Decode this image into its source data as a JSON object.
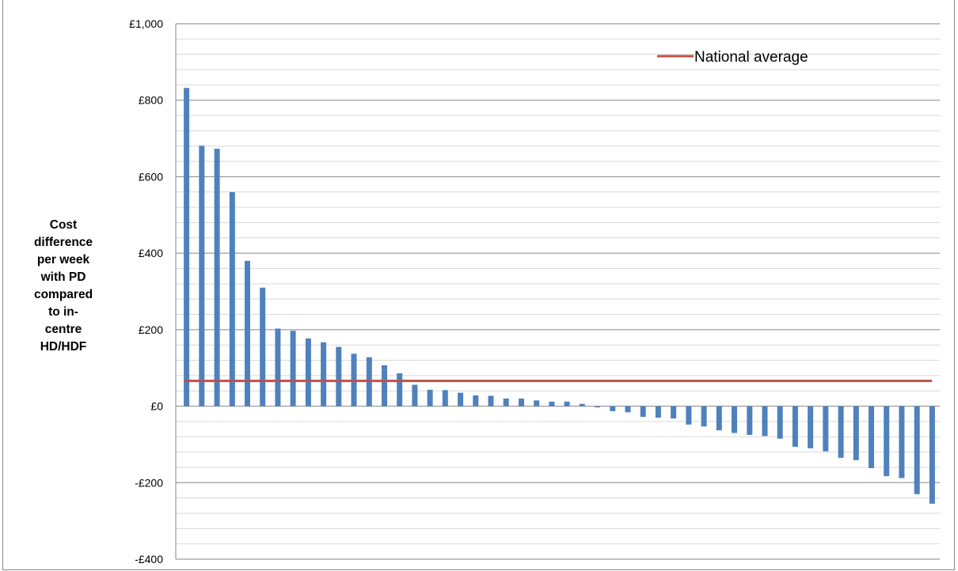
{
  "chart_data": {
    "type": "bar",
    "title": "",
    "xlabel": "",
    "ylabel_lines": [
      "Cost",
      "difference",
      "per week",
      "with PD",
      "compared",
      "to in-centre",
      "HD/HDF"
    ],
    "ylim": [
      -400,
      1000
    ],
    "yticks": [
      -400,
      -200,
      0,
      200,
      400,
      600,
      800,
      1000
    ],
    "ytick_labels": [
      "-£400",
      "-£200",
      "£0",
      "£200",
      "£400",
      "£600",
      "£800",
      "£1,000"
    ],
    "grid": true,
    "series": [
      {
        "type": "bar",
        "color": "#4f81bd",
        "values": [
          832,
          681,
          673,
          560,
          380,
          310,
          203,
          197,
          177,
          167,
          155,
          137,
          128,
          107,
          86,
          56,
          43,
          42,
          35,
          28,
          27,
          20,
          20,
          15,
          12,
          12,
          6,
          -3,
          -13,
          -16,
          -28,
          -30,
          -32,
          -48,
          -53,
          -63,
          -70,
          -75,
          -78,
          -85,
          -106,
          -110,
          -118,
          -135,
          -141,
          -162,
          -183,
          -188,
          -230,
          -255
        ]
      },
      {
        "type": "line",
        "name": "National average",
        "color": "#c0504d",
        "value": 66
      }
    ],
    "legend": {
      "position": "top-right",
      "label": "National average"
    }
  }
}
